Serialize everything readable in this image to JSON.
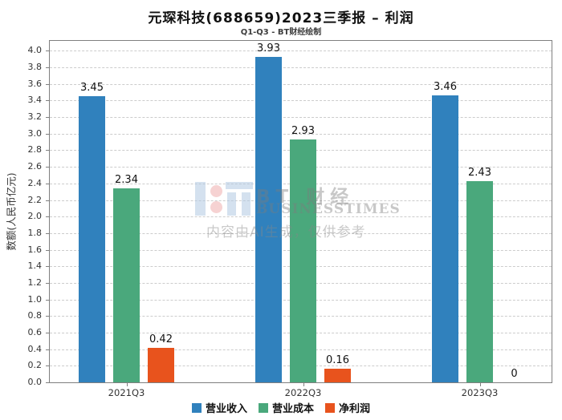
{
  "title": "元琛科技(688659)2023三季报 – 利润",
  "subtitle": "Q1-Q3 - BT财经绘制",
  "watermark": {
    "brand_cn": "BT 财经",
    "brand_en": "BUSINESSTIMES",
    "disclaimer": "内容由AI生成，仅供参考"
  },
  "chart_data": {
    "type": "bar",
    "categories": [
      "2021Q3",
      "2022Q3",
      "2023Q3"
    ],
    "series": [
      {
        "name": "营业收入",
        "color": "#3081bd",
        "values": [
          3.45,
          3.93,
          3.46
        ],
        "labels": [
          "3.45",
          "3.93",
          "3.46"
        ]
      },
      {
        "name": "营业成本",
        "color": "#4aa87c",
        "values": [
          2.34,
          2.93,
          2.43
        ],
        "labels": [
          "2.34",
          "2.93",
          "2.43"
        ]
      },
      {
        "name": "净利润",
        "color": "#e8531d",
        "values": [
          0.42,
          0.16,
          0
        ],
        "labels": [
          "0.42",
          "0.16",
          "0"
        ]
      }
    ],
    "ylabel": "数额(人民币亿元)",
    "xlabel": "",
    "ylim": [
      0,
      4.12
    ],
    "ytick_min": 0,
    "ytick_max": 4.0,
    "ytick_step": 0.2,
    "grid": true,
    "grid_style": "dashed",
    "legend_position": "bottom"
  }
}
